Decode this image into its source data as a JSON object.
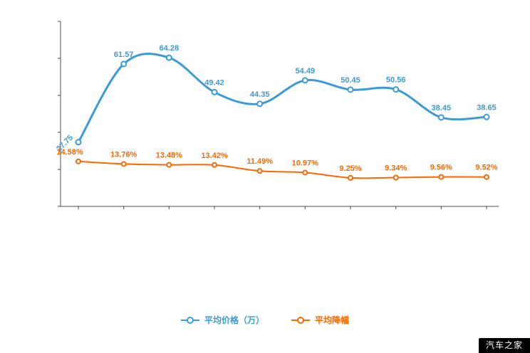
{
  "watermark": "汽车之家",
  "legend": {
    "items": [
      {
        "label": "平均价格（万）",
        "color": "#3b9bd9"
      },
      {
        "label": "平均降幅",
        "color": "#ff6600"
      }
    ]
  },
  "chart_data": {
    "type": "line",
    "title": "",
    "xlabel": "",
    "ylabel": "",
    "grid": false,
    "legend_position": "bottom",
    "x_tick_labels_visible": false,
    "y_tick_labels_visible": false,
    "categories": [
      "",
      "",
      "",
      "",
      "",
      "",
      "",
      "",
      "",
      ""
    ],
    "series": [
      {
        "name": "平均价格（万）",
        "color": "#3b9bd9",
        "ylim": [
          0,
          80
        ],
        "suffix": "",
        "values": [
          27.75,
          61.57,
          64.28,
          49.42,
          44.35,
          54.49,
          50.45,
          50.56,
          38.45,
          38.65
        ]
      },
      {
        "name": "平均降幅",
        "color": "#ff6600",
        "ylim": [
          0,
          60
        ],
        "suffix": "%",
        "values": [
          14.58,
          13.76,
          13.48,
          13.42,
          11.49,
          10.97,
          9.25,
          9.34,
          9.56,
          9.52
        ]
      }
    ]
  }
}
